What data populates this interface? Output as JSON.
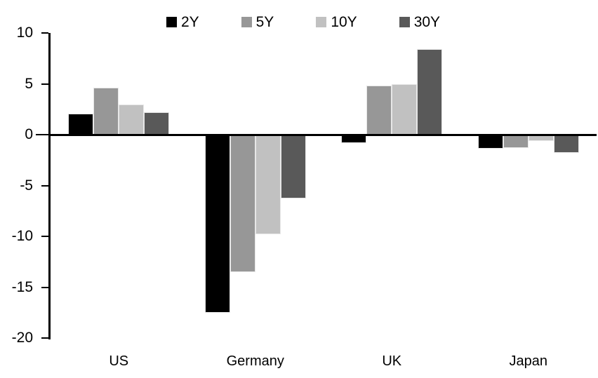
{
  "chart_data": {
    "type": "bar",
    "title": "",
    "categories": [
      "US",
      "Germany",
      "UK",
      "Japan"
    ],
    "series": [
      {
        "name": "2Y",
        "color": "#000000",
        "values": [
          2.1,
          -17.5,
          -0.8,
          -1.4
        ]
      },
      {
        "name": "5Y",
        "color": "#979797",
        "values": [
          4.6,
          -13.5,
          4.8,
          -1.3
        ]
      },
      {
        "name": "10Y",
        "color": "#c1c1c1",
        "values": [
          3.0,
          -9.8,
          5.0,
          -0.6
        ]
      },
      {
        "name": "30Y",
        "color": "#595959",
        "values": [
          2.2,
          -6.3,
          8.4,
          -1.8
        ]
      }
    ],
    "ylim": [
      -20,
      10
    ],
    "yticks": [
      10,
      5,
      0,
      -5,
      -10,
      -15,
      -20
    ],
    "grid": false,
    "legend_position": "top",
    "axis_color": "#000000",
    "background_color": "#ffffff"
  }
}
